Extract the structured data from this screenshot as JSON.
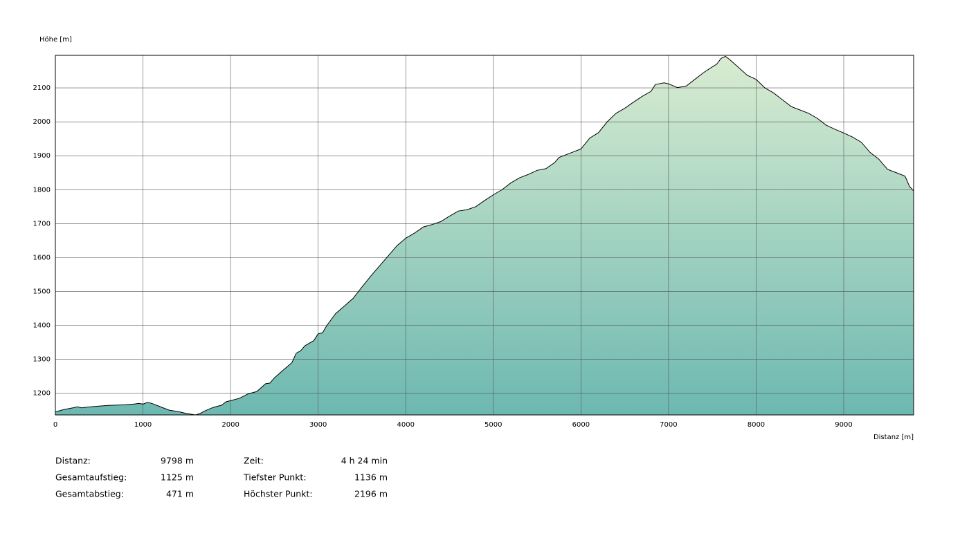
{
  "chart_data": {
    "type": "area",
    "y_label": "Höhe [m]",
    "x_label": "Distanz [m]",
    "x": [
      0,
      100,
      200,
      250,
      300,
      400,
      500,
      600,
      700,
      800,
      900,
      950,
      1000,
      1050,
      1100,
      1200,
      1300,
      1400,
      1500,
      1550,
      1600,
      1650,
      1700,
      1800,
      1900,
      1950,
      2000,
      2100,
      2200,
      2300,
      2400,
      2450,
      2500,
      2600,
      2700,
      2750,
      2800,
      2850,
      2950,
      3000,
      3050,
      3100,
      3200,
      3300,
      3400,
      3500,
      3600,
      3700,
      3800,
      3900,
      4000,
      4100,
      4200,
      4300,
      4400,
      4500,
      4600,
      4700,
      4800,
      4900,
      5000,
      5100,
      5200,
      5300,
      5400,
      5500,
      5600,
      5700,
      5750,
      5900,
      6000,
      6100,
      6200,
      6300,
      6400,
      6500,
      6600,
      6700,
      6800,
      6850,
      6950,
      7000,
      7100,
      7200,
      7300,
      7400,
      7500,
      7550,
      7600,
      7650,
      7700,
      7800,
      7900,
      8000,
      8100,
      8200,
      8300,
      8400,
      8500,
      8600,
      8700,
      8800,
      8900,
      9000,
      9100,
      9200,
      9300,
      9400,
      9500,
      9600,
      9700,
      9750,
      9798
    ],
    "values": [
      1145,
      1152,
      1157,
      1160,
      1157,
      1160,
      1162,
      1164,
      1165,
      1166,
      1168,
      1170,
      1168,
      1173,
      1170,
      1160,
      1150,
      1146,
      1140,
      1138,
      1136,
      1140,
      1147,
      1158,
      1165,
      1175,
      1178,
      1185,
      1198,
      1205,
      1228,
      1230,
      1245,
      1268,
      1290,
      1318,
      1325,
      1340,
      1355,
      1375,
      1378,
      1400,
      1435,
      1457,
      1480,
      1513,
      1545,
      1575,
      1605,
      1635,
      1657,
      1672,
      1690,
      1697,
      1706,
      1722,
      1737,
      1741,
      1750,
      1768,
      1785,
      1800,
      1820,
      1835,
      1845,
      1857,
      1862,
      1880,
      1895,
      1910,
      1920,
      1952,
      1968,
      2000,
      2025,
      2040,
      2058,
      2075,
      2090,
      2110,
      2115,
      2112,
      2101,
      2105,
      2125,
      2145,
      2162,
      2170,
      2187,
      2193,
      2183,
      2160,
      2137,
      2125,
      2100,
      2085,
      2065,
      2045,
      2035,
      2025,
      2010,
      1990,
      1978,
      1967,
      1955,
      1940,
      1910,
      1890,
      1860,
      1850,
      1840,
      1810,
      1796
    ],
    "xlim": [
      0,
      9798
    ],
    "ylim": [
      1136,
      2196
    ],
    "xticks": [
      0,
      1000,
      2000,
      3000,
      4000,
      5000,
      6000,
      7000,
      8000,
      9000
    ],
    "yticks": [
      1200,
      1300,
      1400,
      1500,
      1600,
      1700,
      1800,
      1900,
      2000,
      2100
    ],
    "grid": true,
    "color_top": "#d9ecd1",
    "color_bottom": "#6cb8b1",
    "line_color": "#000000"
  },
  "summary": {
    "left": [
      {
        "label": "Distanz:",
        "value": "9798 m"
      },
      {
        "label": "Gesamtaufstieg:",
        "value": "1125 m"
      },
      {
        "label": "Gesamtabstieg:",
        "value": "471 m"
      }
    ],
    "right": [
      {
        "label": "Zeit:",
        "value": "4 h 24 min"
      },
      {
        "label": "Tiefster Punkt:",
        "value": "1136 m"
      },
      {
        "label": "Höchster Punkt:",
        "value": "2196 m"
      }
    ]
  }
}
